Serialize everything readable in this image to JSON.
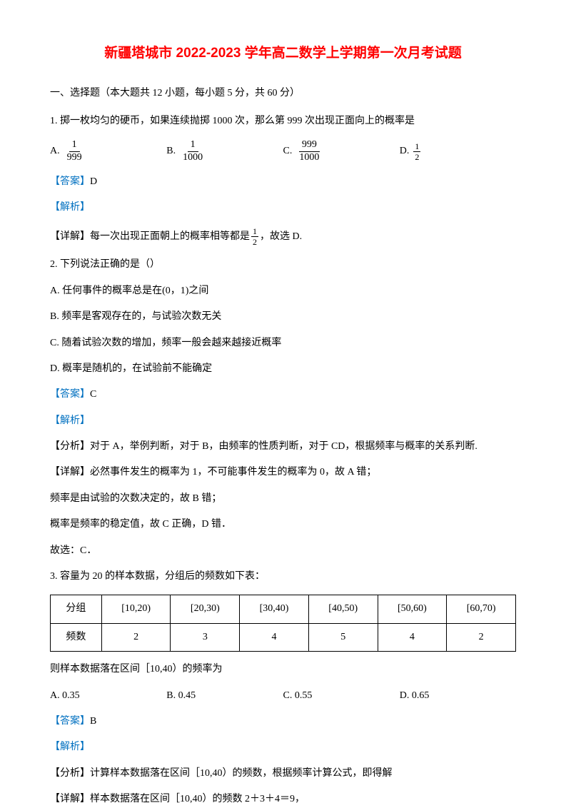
{
  "title": "新疆塔城市 2022-2023 学年高二数学上学期第一次月考试题",
  "section_heading": "一、选择题（本大题共 12 小题，每小题 5 分，共 60 分）",
  "q1": {
    "text": "1. 掷一枚均匀的硬币，如果连续抛掷 1000 次，那么第 999 次出现正面向上的概率是",
    "options": {
      "a_label": "A.",
      "a_num": "1",
      "a_den": "999",
      "b_label": "B.",
      "b_num": "1",
      "b_den": "1000",
      "c_label": "C.",
      "c_num": "999",
      "c_den": "1000",
      "d_label": "D.",
      "d_num": "1",
      "d_den": "2"
    },
    "answer_label": "【答案】",
    "answer": "D",
    "analysis_label": "【解析】",
    "detail_prefix": "【详解】每一次出现正面朝上的概率相等都是",
    "detail_num": "1",
    "detail_den": "2",
    "detail_suffix": "，故选 D."
  },
  "q2": {
    "text": "2. 下列说法正确的是（）",
    "option_a": "A. 任何事件的概率总是在(0，1)之间",
    "option_b": "B. 频率是客观存在的，与试验次数无关",
    "option_c": "C. 随着试验次数的增加，频率一般会越来越接近概率",
    "option_d": "D. 概率是随机的，在试验前不能确定",
    "answer_label": "【答案】",
    "answer": "C",
    "analysis_label": "【解析】",
    "analysis": "【分析】对于 A，举例判断，对于 B，由频率的性质判断，对于 CD，根据频率与概率的关系判断.",
    "detail1": "【详解】必然事件发生的概率为 1，不可能事件发生的概率为 0，故 A 错；",
    "detail2": "频率是由试验的次数决定的，故 B 错；",
    "detail3": "概率是频率的稳定值，故 C 正确，D 错．",
    "detail4": "故选：C．"
  },
  "q3": {
    "text": "3. 容量为 20 的样本数据，分组后的频数如下表：",
    "table": {
      "row1": [
        "分组",
        "[10,20)",
        "[20,30)",
        "[30,40)",
        "[40,50)",
        "[50,60)",
        "[60,70)"
      ],
      "row2": [
        "频数",
        "2",
        "3",
        "4",
        "5",
        "4",
        "2"
      ]
    },
    "after_table": "则样本数据落在区间［10,40）的频率为",
    "options": {
      "a": "A. 0.35",
      "b": "B. 0.45",
      "c": "C. 0.55",
      "d": "D. 0.65"
    },
    "answer_label": "【答案】",
    "answer": "B",
    "analysis_label": "【解析】",
    "analysis": "【分析】计算样本数据落在区间［10,40）的频数，根据频率计算公式，即得解",
    "detail": "【详解】样本数据落在区间［10,40）的频数 2＋3＋4＝9，"
  },
  "colors": {
    "title_color": "#ff0000",
    "label_color": "#0070c0",
    "text_color": "#000000",
    "background": "#ffffff",
    "table_border": "#000000"
  }
}
